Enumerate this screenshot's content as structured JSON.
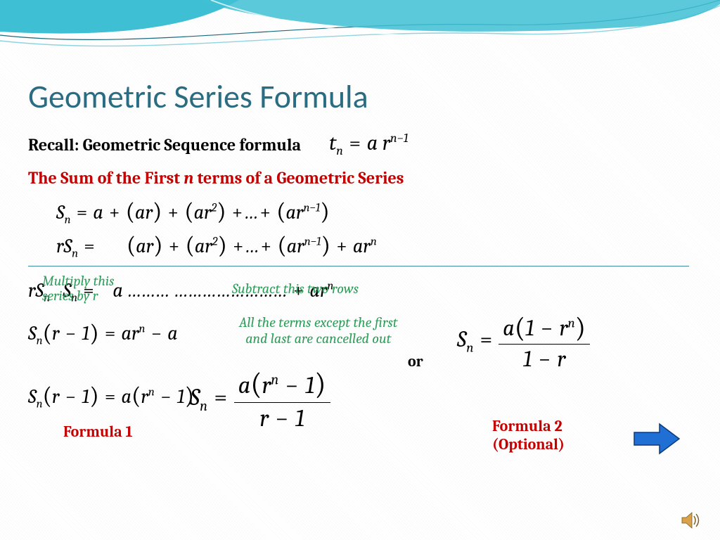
{
  "colors": {
    "title": "#2a6d82",
    "accent_red": "#c40000",
    "accent_green": "#2f9e5b",
    "text": "#000000",
    "wave_fill": "#3fbfd4",
    "wave_line_dark": "#1a6a7f",
    "wave_line_light": "#8fd4e0",
    "hr": "#3a8aa0",
    "arrow_fill": "#1f6fd4",
    "arrow_stroke": "#0d3a7a"
  },
  "typography": {
    "title_fontsize": 46,
    "body_fontsize": 24,
    "math_fontsize": 28,
    "note_fontsize": 20,
    "big_math_fontsize": 34,
    "label_fontsize": 22
  },
  "title": "Geometric Series Formula",
  "recall": {
    "label": "Recall:  Geometric Sequence formula",
    "formula_html": "t<sub>n</sub> <span class='op'>=</span> a r<sup>n−1</sup>"
  },
  "sum_heading": {
    "prefix": "The Sum of the First ",
    "n": "n",
    "suffix": " terms of a Geometric Series"
  },
  "series": {
    "line1_html": "S<sub>n</sub> <span class='op'>=</span> a <span class='op'>+</span> <span class='paren'>(</span>ar<span class='paren'>)</span> <span class='op'>+</span> <span class='paren'>(</span>ar<sup>2</sup><span class='paren'>)</span> <span class='op'>+</span>…<span class='op'>+</span> <span class='paren'>(</span>ar<sup>n−1</sup><span class='paren'>)</span>",
    "line2_html": "rS<sub>n</sub> <span class='op'>=</span> &nbsp;&nbsp;&nbsp;&nbsp;&nbsp; <span class='paren'>(</span>ar<span class='paren'>)</span> <span class='op'>+</span> <span class='paren'>(</span>ar<sup>2</sup><span class='paren'>)</span> <span class='op'>+</span>…<span class='op'>+</span> <span class='paren'>(</span>ar<sup>n−1</sup><span class='paren'>)</span> <span class='op'>+</span> ar<sup>n</sup>"
  },
  "overlap": {
    "back_html": "rS<sub>n</sub>&nbsp;&nbsp;&nbsp;S<sub>n</sub> <span class='op'>=</span> &nbsp;&nbsp; a ……… …………………… <span class='op'>+</span> ar<sup>n</sup>",
    "note1_line1": "Multiply this",
    "note1_line2": "series by r",
    "note2": "Subtract this two rows"
  },
  "derivation": {
    "eq1_html": "S<sub>n</sub><span class='paren'>(</span>r <span class='op'>−</span> 1<span class='paren'>)</span> <span class='op'>=</span> ar<sup>n</sup> <span class='op'>−</span> a",
    "note3_line1": "All the terms except the first",
    "note3_line2": "and last are cancelled out",
    "eq2_html": "S<sub>n</sub><span class='paren'>(</span>r <span class='op'>−</span> 1<span class='paren'>)</span> <span class='op'>=</span> a<span class='paren'>(</span>r<sup>n</sup> <span class='op'>−</span> 1<span class='paren'>)</span>",
    "formula2_prefix_html": "S<sub>n</sub> <span class='op'>=</span> ",
    "formula2_num_html": "a<span class='paren'>(</span>1 <span class='op'>−</span> r<sup>n</sup><span class='paren'>)</span>",
    "formula2_den_html": "1 <span class='op'>−</span> r"
  },
  "big_formula": {
    "prefix_html": "S<sub>n</sub> <span class='op'>=</span> ",
    "num_html": "a<span class='paren'>(</span>r<sup>n</sup> <span class='op'>−</span> 1<span class='paren'>)</span>",
    "den_html": "r <span class='op'>−</span> 1"
  },
  "labels": {
    "formula1": "Formula 1",
    "or": "or",
    "formula2_line1": "Formula 2",
    "formula2_line2": "(Optional)"
  }
}
